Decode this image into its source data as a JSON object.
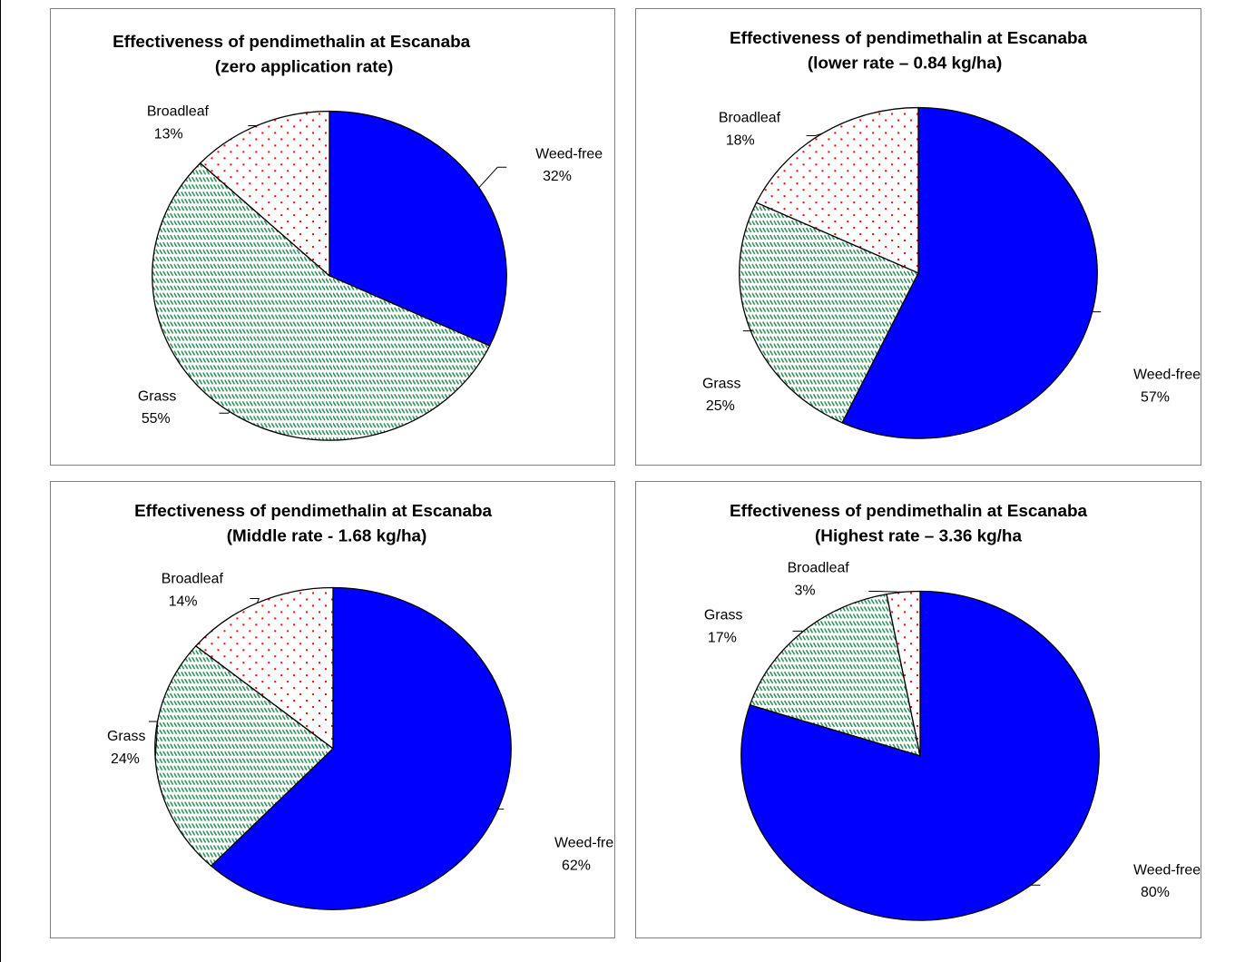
{
  "colors": {
    "weed_free": "#0000ff",
    "grass_pattern": "#2e8b57",
    "broadleaf_pattern": "#ff0000",
    "outline": "#000000"
  },
  "chart_data": [
    {
      "type": "pie",
      "title": "Effectiveness of pendimethalin at Escanaba",
      "subtitle": "(zero application rate)",
      "slices": [
        {
          "name": "Weed-free",
          "value": 32,
          "label": "32%"
        },
        {
          "name": "Grass",
          "value": 55,
          "label": "55%"
        },
        {
          "name": "Broadleaf",
          "value": 13,
          "label": "13%"
        }
      ]
    },
    {
      "type": "pie",
      "title": "Effectiveness of pendimethalin at Escanaba",
      "subtitle": "(lower rate – 0.84 kg/ha)",
      "slices": [
        {
          "name": "Weed-free",
          "value": 57,
          "label": "57%"
        },
        {
          "name": "Grass",
          "value": 25,
          "label": "25%"
        },
        {
          "name": "Broadleaf",
          "value": 18,
          "label": "18%"
        }
      ]
    },
    {
      "type": "pie",
      "title": "Effectiveness of pendimethalin at Escanaba",
      "subtitle": "(Middle rate - 1.68 kg/ha)",
      "slices": [
        {
          "name": "Weed-free",
          "value": 62,
          "label": "62%"
        },
        {
          "name": "Grass",
          "value": 24,
          "label": "24%"
        },
        {
          "name": "Broadleaf",
          "value": 14,
          "label": "14%"
        }
      ]
    },
    {
      "type": "pie",
      "title": "Effectiveness of pendimethalin at Escanaba",
      "subtitle": "(Highest rate – 3.36 kg/ha",
      "slices": [
        {
          "name": "Weed-free",
          "value": 80,
          "label": "80%"
        },
        {
          "name": "Grass",
          "value": 17,
          "label": "17%"
        },
        {
          "name": "Broadleaf",
          "value": 3,
          "label": "3%"
        }
      ]
    }
  ]
}
